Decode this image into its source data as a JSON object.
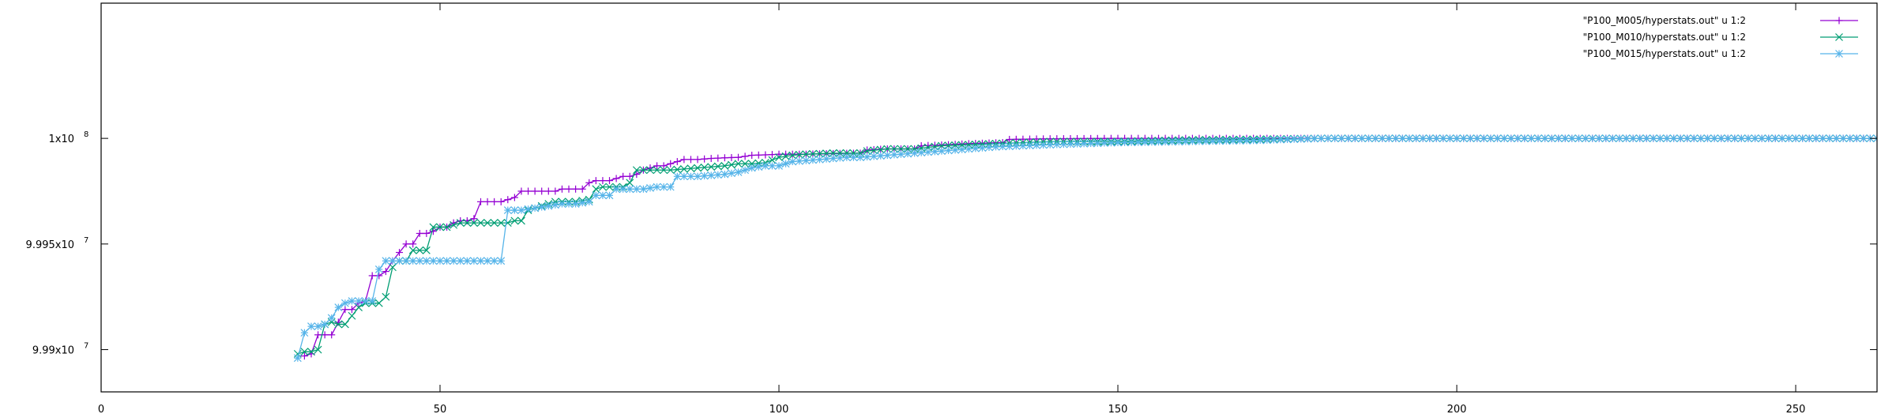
{
  "chart_data": {
    "type": "line",
    "title": "",
    "xlabel": "",
    "ylabel": "",
    "xlim": [
      0,
      262
    ],
    "ylim": [
      99988000,
      100006400
    ],
    "grid": false,
    "legend_position": "top-right",
    "x_ticks": [
      {
        "value": 0,
        "label": "0"
      },
      {
        "value": 50,
        "label": "50"
      },
      {
        "value": 100,
        "label": "100"
      },
      {
        "value": 150,
        "label": "150"
      },
      {
        "value": 200,
        "label": "200"
      },
      {
        "value": 250,
        "label": "250"
      }
    ],
    "y_ticks": [
      {
        "value": 99990000,
        "label": "9.99x10",
        "exp": "7"
      },
      {
        "value": 99995000,
        "label": "9.995x10",
        "exp": "7"
      },
      {
        "value": 100000000,
        "label": "1x10",
        "exp": "8"
      }
    ],
    "series": [
      {
        "name": "\"P100_M005/hyperstats.out\" u 1:2",
        "color": "#9400d3",
        "marker": "plus",
        "points": [
          [
            30,
            99989700
          ],
          [
            31,
            99989800
          ],
          [
            32,
            99990700
          ],
          [
            33,
            99990700
          ],
          [
            34,
            99990700
          ],
          [
            35,
            99991300
          ],
          [
            36,
            99991900
          ],
          [
            37,
            99991900
          ],
          [
            38,
            99992200
          ],
          [
            39,
            99992300
          ],
          [
            40,
            99993500
          ],
          [
            41,
            99993500
          ],
          [
            42,
            99993700
          ],
          [
            43,
            99994200
          ],
          [
            44,
            99994600
          ],
          [
            45,
            99995000
          ],
          [
            46,
            99995000
          ],
          [
            47,
            99995500
          ],
          [
            48,
            99995500
          ],
          [
            49,
            99995600
          ],
          [
            50,
            99995800
          ],
          [
            51,
            99995800
          ],
          [
            52,
            99996000
          ],
          [
            53,
            99996100
          ],
          [
            54,
            99996100
          ],
          [
            55,
            99996200
          ],
          [
            56,
            99997000
          ],
          [
            57,
            99997000
          ],
          [
            58,
            99997000
          ],
          [
            59,
            99997000
          ],
          [
            60,
            99997100
          ],
          [
            61,
            99997200
          ],
          [
            62,
            99997500
          ],
          [
            63,
            99997500
          ],
          [
            64,
            99997500
          ],
          [
            65,
            99997500
          ],
          [
            66,
            99997500
          ],
          [
            67,
            99997500
          ],
          [
            68,
            99997600
          ],
          [
            69,
            99997600
          ],
          [
            70,
            99997600
          ],
          [
            71,
            99997600
          ],
          [
            72,
            99997900
          ],
          [
            73,
            99998000
          ],
          [
            74,
            99998000
          ],
          [
            75,
            99998000
          ],
          [
            76,
            99998100
          ],
          [
            77,
            99998200
          ],
          [
            78,
            99998200
          ],
          [
            79,
            99998300
          ],
          [
            80,
            99998500
          ],
          [
            81,
            99998600
          ],
          [
            82,
            99998700
          ],
          [
            83,
            99998700
          ],
          [
            84,
            99998800
          ],
          [
            85,
            99998900
          ],
          [
            86,
            99999000
          ],
          [
            88,
            99999000
          ],
          [
            90,
            99999050
          ],
          [
            92,
            99999080
          ],
          [
            94,
            99999100
          ],
          [
            96,
            99999200
          ],
          [
            98,
            99999220
          ],
          [
            100,
            99999250
          ],
          [
            104,
            99999250
          ],
          [
            108,
            99999280
          ],
          [
            112,
            99999300
          ],
          [
            113,
            99999450
          ],
          [
            116,
            99999500
          ],
          [
            120,
            99999500
          ],
          [
            121,
            99999650
          ],
          [
            125,
            99999700
          ],
          [
            128,
            99999750
          ],
          [
            133,
            99999800
          ],
          [
            134,
            99999950
          ],
          [
            140,
            99999980
          ],
          [
            150,
            100000000
          ],
          [
            170,
            100000000
          ],
          [
            180,
            100000000
          ],
          [
            190,
            100000000
          ],
          [
            200,
            100000000
          ],
          [
            210,
            100000000
          ],
          [
            220,
            100000000
          ],
          [
            230,
            100000000
          ],
          [
            240,
            100000000
          ],
          [
            250,
            100000000
          ],
          [
            262,
            100000000
          ]
        ]
      },
      {
        "name": "\"P100_M010/hyperstats.out\" u 1:2",
        "color": "#009e73",
        "marker": "cross",
        "points": [
          [
            29,
            99989800
          ],
          [
            30,
            99989900
          ],
          [
            31,
            99989900
          ],
          [
            32,
            99990000
          ],
          [
            33,
            99991200
          ],
          [
            34,
            99991300
          ],
          [
            35,
            99991200
          ],
          [
            36,
            99991200
          ],
          [
            37,
            99991600
          ],
          [
            38,
            99992000
          ],
          [
            39,
            99992200
          ],
          [
            40,
            99992200
          ],
          [
            41,
            99992200
          ],
          [
            42,
            99992500
          ],
          [
            43,
            99993900
          ],
          [
            44,
            99994200
          ],
          [
            45,
            99994200
          ],
          [
            46,
            99994700
          ],
          [
            47,
            99994700
          ],
          [
            48,
            99994700
          ],
          [
            49,
            99995800
          ],
          [
            50,
            99995800
          ],
          [
            51,
            99995800
          ],
          [
            52,
            99995900
          ],
          [
            53,
            99996000
          ],
          [
            55,
            99996000
          ],
          [
            58,
            99996000
          ],
          [
            60,
            99996000
          ],
          [
            61,
            99996100
          ],
          [
            62,
            99996100
          ],
          [
            63,
            99996600
          ],
          [
            64,
            99996700
          ],
          [
            65,
            99996800
          ],
          [
            66,
            99996900
          ],
          [
            67,
            99997000
          ],
          [
            70,
            99997000
          ],
          [
            72,
            99997100
          ],
          [
            73,
            99997600
          ],
          [
            74,
            99997700
          ],
          [
            76,
            99997700
          ],
          [
            77,
            99997700
          ],
          [
            78,
            99997900
          ],
          [
            79,
            99998500
          ],
          [
            80,
            99998500
          ],
          [
            84,
            99998500
          ],
          [
            86,
            99998550
          ],
          [
            88,
            99998600
          ],
          [
            90,
            99998650
          ],
          [
            92,
            99998700
          ],
          [
            94,
            99998800
          ],
          [
            96,
            99998800
          ],
          [
            98,
            99998850
          ],
          [
            100,
            99999100
          ],
          [
            102,
            99999200
          ],
          [
            104,
            99999250
          ],
          [
            108,
            99999300
          ],
          [
            112,
            99999300
          ],
          [
            113,
            99999400
          ],
          [
            116,
            99999500
          ],
          [
            120,
            99999500
          ],
          [
            124,
            99999650
          ],
          [
            128,
            99999700
          ],
          [
            132,
            99999750
          ],
          [
            136,
            99999800
          ],
          [
            140,
            99999850
          ],
          [
            150,
            99999850
          ],
          [
            160,
            99999920
          ],
          [
            170,
            99999950
          ],
          [
            180,
            100000000
          ],
          [
            190,
            100000000
          ],
          [
            200,
            100000000
          ],
          [
            210,
            100000000
          ],
          [
            220,
            100000000
          ],
          [
            230,
            100000000
          ],
          [
            240,
            100000000
          ],
          [
            250,
            100000000
          ],
          [
            262,
            100000000
          ]
        ]
      },
      {
        "name": "\"P100_M015/hyperstats.out\" u 1:2",
        "color": "#56b4e9",
        "marker": "star",
        "points": [
          [
            29,
            99989600
          ],
          [
            30,
            99990800
          ],
          [
            31,
            99991100
          ],
          [
            32,
            99991100
          ],
          [
            33,
            99991200
          ],
          [
            34,
            99991500
          ],
          [
            35,
            99992000
          ],
          [
            36,
            99992200
          ],
          [
            37,
            99992300
          ],
          [
            39,
            99992300
          ],
          [
            40,
            99992300
          ],
          [
            41,
            99993800
          ],
          [
            42,
            99994200
          ],
          [
            45,
            99994200
          ],
          [
            50,
            99994200
          ],
          [
            55,
            99994200
          ],
          [
            59,
            99994200
          ],
          [
            60,
            99996600
          ],
          [
            62,
            99996600
          ],
          [
            64,
            99996700
          ],
          [
            66,
            99996800
          ],
          [
            68,
            99996900
          ],
          [
            70,
            99996900
          ],
          [
            72,
            99997000
          ],
          [
            73,
            99997300
          ],
          [
            75,
            99997300
          ],
          [
            76,
            99997600
          ],
          [
            78,
            99997600
          ],
          [
            80,
            99997600
          ],
          [
            82,
            99997700
          ],
          [
            84,
            99997700
          ],
          [
            85,
            99998200
          ],
          [
            88,
            99998200
          ],
          [
            92,
            99998300
          ],
          [
            94,
            99998400
          ],
          [
            96,
            99998600
          ],
          [
            98,
            99998700
          ],
          [
            100,
            99998700
          ],
          [
            102,
            99998900
          ],
          [
            106,
            99999000
          ],
          [
            110,
            99999100
          ],
          [
            112,
            99999100
          ],
          [
            116,
            99999200
          ],
          [
            120,
            99999300
          ],
          [
            124,
            99999400
          ],
          [
            128,
            99999500
          ],
          [
            132,
            99999600
          ],
          [
            140,
            99999700
          ],
          [
            150,
            99999800
          ],
          [
            160,
            99999850
          ],
          [
            170,
            99999900
          ],
          [
            180,
            100000000
          ],
          [
            190,
            100000000
          ],
          [
            200,
            100000000
          ],
          [
            210,
            100000000
          ],
          [
            220,
            100000000
          ],
          [
            230,
            100000000
          ],
          [
            240,
            100000000
          ],
          [
            250,
            100000000
          ],
          [
            262,
            100000000
          ]
        ]
      }
    ]
  }
}
